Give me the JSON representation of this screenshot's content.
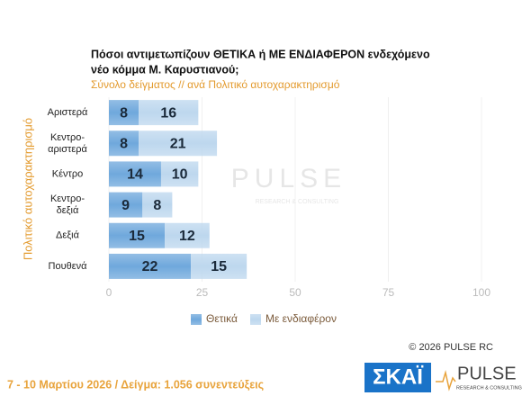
{
  "chart_data": {
    "type": "stacked-barh",
    "title": [
      "Πόσοι αντιμετωπίζουν ΘΕΤΙΚΑ ή ΜΕ ΕΝΔΙΑΦΕΡΟΝ ενδεχόμενο",
      "νέο κόμμα Μ. Καρυστιανού;"
    ],
    "subtitle": "Σύνολο δείγματος // ανά Πολιτικό αυτοχαρακτηρισμό",
    "y_label": "Πολιτικό αυτοχαρακτηρισμό",
    "categories": [
      "Αριστερά",
      "Κεντρο-\nαριστερά",
      "Κέντρο",
      "Κεντρο-\nδεξιά",
      "Δεξιά",
      "Πουθενά"
    ],
    "series": [
      {
        "name": "Θετικά",
        "color": "#6fa8dc",
        "values": [
          8,
          8,
          14,
          9,
          15,
          22
        ]
      },
      {
        "name": "Με ενδιαφέρον",
        "color": "#bdd7ee",
        "values": [
          16,
          21,
          10,
          8,
          12,
          15
        ]
      }
    ],
    "xlim": [
      0,
      100
    ],
    "xticks": [
      0,
      25,
      50,
      75,
      100
    ],
    "grid": true,
    "legend": "bottom",
    "copyright": "© 2026  PULSE RC",
    "footer": "7 - 10  Μαρτίου 2026  /  Δείγμα:  1.056 συνεντεύξεις",
    "logos": {
      "skai": "ΣΚΑΪ",
      "pulse": "PULSE",
      "pulse_sub": "RESEARCH & CONSULTING"
    },
    "watermark": {
      "text": "PULSE",
      "sub": "RESEARCH & CONSULTING"
    }
  }
}
